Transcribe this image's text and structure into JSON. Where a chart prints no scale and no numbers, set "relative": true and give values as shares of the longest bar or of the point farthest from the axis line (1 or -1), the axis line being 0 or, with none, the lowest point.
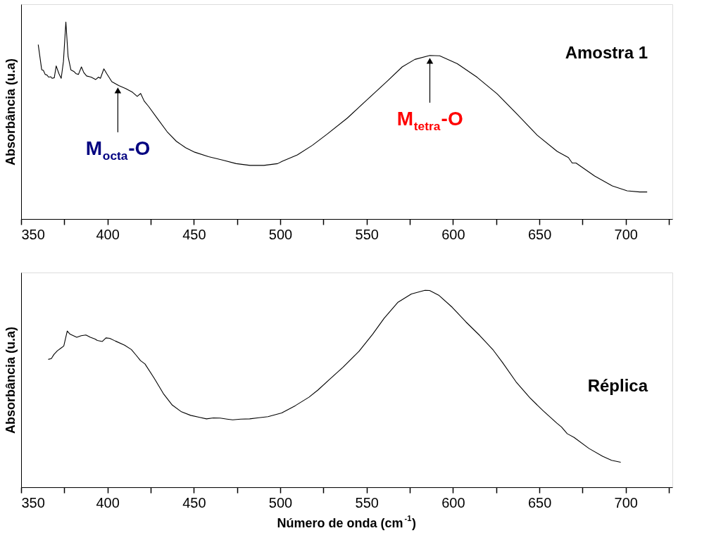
{
  "chart_data": [
    {
      "type": "line",
      "ylabel": "Absorbância (u.a)",
      "relative": true,
      "tick_labels": "x",
      "xlim": [
        350,
        727
      ],
      "xticks": [
        350,
        {
          "value": 375,
          "label": null
        },
        400,
        {
          "value": 425,
          "label": null
        },
        450,
        {
          "value": 475,
          "label": null
        },
        500,
        {
          "value": 525,
          "label": null
        },
        550,
        {
          "value": 575,
          "label": null
        },
        600,
        {
          "value": 625,
          "label": null
        },
        650,
        {
          "value": 675,
          "label": null
        },
        700,
        {
          "value": 725,
          "label": null
        }
      ],
      "annotations": [
        {
          "text": "M$_{octa}$-O",
          "x": 406,
          "y": 0.68
        },
        {
          "text": "M$_{tetra}$-O",
          "x": 586.6,
          "y": 0.83
        },
        "Amostra 1"
      ],
      "series": [
        {
          "color": "#000000",
          "x": [
            359.9,
            361.9,
            362.9,
            363.9,
            364.9,
            365.9,
            367.2,
            367.9,
            369.2,
            370.3,
            371.9,
            373.2,
            374.5,
            375.9,
            377.2,
            378.8,
            380.5,
            381.9,
            383.2,
            384.9,
            386.3,
            387.9,
            390.5,
            393.2,
            394.8,
            395.9,
            397.9,
            399.6,
            402.5,
            406.5,
            410.5,
            414.5,
            417.2,
            419.2,
            421.2,
            423.9,
            429.2,
            434.5,
            439.9,
            445.2,
            450.5,
            458.5,
            466.5,
            474.5,
            482.5,
            490.5,
            498.5,
            501.2,
            509.9,
            518.6,
            527.2,
            538.8,
            550.4,
            562.0,
            570.6,
            577.9,
            586.6,
            592.3,
            602.5,
            614.0,
            625.6,
            637.2,
            648.8,
            660.3,
            666.8,
            669.0,
            671.2,
            682.0,
            692.2,
            700.8,
            708.1,
            712.4
          ],
          "values": [
            0.885,
            0.758,
            0.754,
            0.734,
            0.731,
            0.72,
            0.722,
            0.714,
            0.717,
            0.777,
            0.737,
            0.714,
            0.8,
            1.0,
            0.824,
            0.757,
            0.749,
            0.737,
            0.734,
            0.772,
            0.743,
            0.726,
            0.72,
            0.708,
            0.72,
            0.714,
            0.762,
            0.737,
            0.697,
            0.677,
            0.662,
            0.643,
            0.622,
            0.637,
            0.599,
            0.57,
            0.506,
            0.443,
            0.394,
            0.362,
            0.339,
            0.316,
            0.299,
            0.281,
            0.272,
            0.272,
            0.281,
            0.293,
            0.325,
            0.374,
            0.431,
            0.512,
            0.606,
            0.7,
            0.772,
            0.81,
            0.83,
            0.828,
            0.788,
            0.719,
            0.635,
            0.531,
            0.425,
            0.343,
            0.312,
            0.284,
            0.284,
            0.218,
            0.168,
            0.143,
            0.137,
            0.137
          ]
        }
      ]
    },
    {
      "type": "line",
      "ylabel": "Absorbância (u.a)",
      "xlabel": "Número de onda (cm$^{-1}$)",
      "relative": true,
      "tick_labels": "x",
      "xlim": [
        350,
        727
      ],
      "xticks": [
        350,
        {
          "value": 375,
          "label": null
        },
        400,
        {
          "value": 425,
          "label": null
        },
        450,
        {
          "value": 475,
          "label": null
        },
        500,
        {
          "value": 525,
          "label": null
        },
        550,
        {
          "value": 575,
          "label": null
        },
        600,
        {
          "value": 625,
          "label": null
        },
        650,
        {
          "value": 675,
          "label": null
        },
        700,
        {
          "value": 725,
          "label": null
        }
      ],
      "annotations": [
        "Réplica"
      ],
      "series": [
        {
          "color": "#000000",
          "x": [
            365.7,
            367.5,
            369.0,
            371.0,
            373.0,
            374.7,
            376.7,
            378.3,
            382.2,
            384.8,
            387.5,
            390.1,
            392.8,
            394.1,
            397.0,
            399.1,
            401.3,
            404.6,
            409.9,
            413.8,
            416.5,
            419.1,
            421.7,
            427.0,
            432.3,
            437.5,
            442.8,
            448.1,
            453.4,
            457.3,
            461.3,
            465.2,
            469.2,
            472.5,
            477.1,
            482.3,
            487.6,
            492.9,
            500.8,
            508.7,
            516.6,
            521.9,
            528.5,
            536.4,
            545.6,
            553.5,
            560.1,
            568.0,
            575.9,
            583.8,
            586.4,
            591.7,
            599.6,
            607.5,
            615.4,
            623.3,
            628.6,
            636.5,
            644.4,
            652.3,
            660.2,
            662.8,
            666.1,
            670.1,
            678.7,
            686.6,
            691.8,
            697.1
          ],
          "values": [
            0.649,
            0.653,
            0.674,
            0.693,
            0.706,
            0.717,
            0.793,
            0.777,
            0.761,
            0.769,
            0.773,
            0.761,
            0.752,
            0.745,
            0.74,
            0.758,
            0.756,
            0.742,
            0.721,
            0.699,
            0.671,
            0.643,
            0.626,
            0.554,
            0.476,
            0.417,
            0.383,
            0.365,
            0.355,
            0.347,
            0.352,
            0.351,
            0.346,
            0.342,
            0.346,
            0.347,
            0.353,
            0.358,
            0.377,
            0.414,
            0.457,
            0.494,
            0.547,
            0.61,
            0.69,
            0.777,
            0.857,
            0.938,
            0.981,
            1.0,
            0.999,
            0.975,
            0.913,
            0.839,
            0.771,
            0.696,
            0.634,
            0.535,
            0.455,
            0.387,
            0.325,
            0.306,
            0.272,
            0.253,
            0.197,
            0.157,
            0.137,
            0.127
          ]
        }
      ]
    }
  ]
}
